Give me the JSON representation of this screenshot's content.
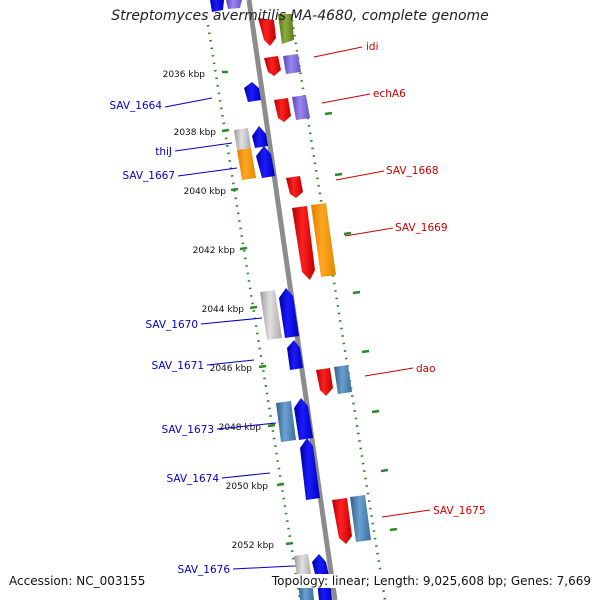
{
  "title": "Streptomyces avermitilis MA-4680, complete genome",
  "footer": {
    "accession": "Accession: NC_003155",
    "stats": "Topology: linear; Length: 9,025,608 bp; Genes: 7,669"
  },
  "colors": {
    "backbone": "#8c8c8c",
    "ring": "#2a8a2a",
    "blue": "#0000ee",
    "red": "#ee0000",
    "orange": "#ff9900",
    "purple": "#7b61d6",
    "steel": "#4682b4",
    "gray": "#c0c0c0",
    "olive": "#6b8e23",
    "label_blue": "#0000cc",
    "label_red": "#cc0000"
  },
  "ticks": [
    "2036 kbp",
    "2038 kbp",
    "2040 kbp",
    "2042 kbp",
    "2044 kbp",
    "2046 kbp",
    "2048 kbp",
    "2050 kbp",
    "2052 kbp"
  ],
  "labels_left": [
    "SAV_1664",
    "thiJ",
    "SAV_1667",
    "SAV_1670",
    "SAV_1671",
    "SAV_1673",
    "SAV_1674",
    "SAV_1676"
  ],
  "labels_right": [
    "idi",
    "echA6",
    "SAV_1668",
    "SAV_1669",
    "dao",
    "SAV_1675"
  ]
}
